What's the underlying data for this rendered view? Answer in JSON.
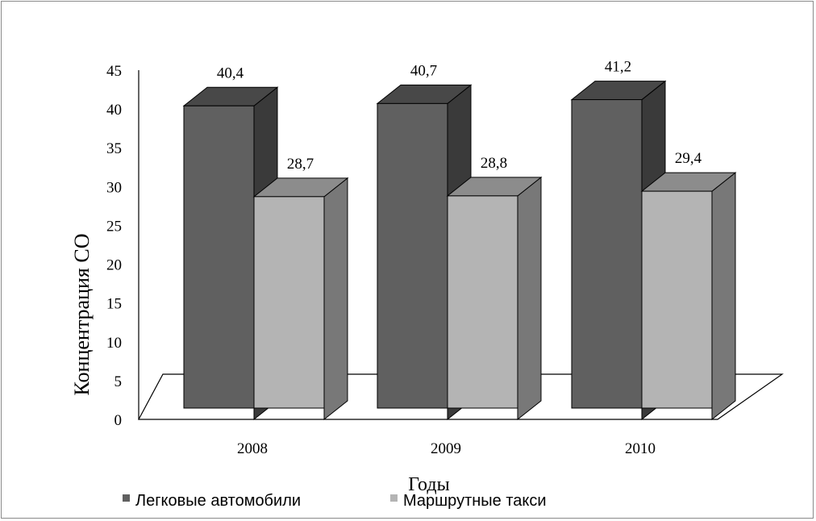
{
  "chart_data": {
    "type": "bar",
    "title": "",
    "xlabel": "Годы",
    "ylabel": "Концентрация СО",
    "categories": [
      "2008",
      "2009",
      "2010"
    ],
    "series": [
      {
        "name": "Легковые автомобили",
        "values": [
          40.4,
          40.7,
          41.2
        ],
        "value_labels": [
          "40,4",
          "40,7",
          "41,2"
        ],
        "color": "#606060"
      },
      {
        "name": "Маршрутные такси",
        "values": [
          28.7,
          28.8,
          29.4
        ],
        "value_labels": [
          "28,7",
          "28,8",
          "29,4"
        ],
        "color": "#b4b4b4"
      }
    ],
    "ylim": [
      0,
      45
    ],
    "yticks": [
      "0",
      "5",
      "10",
      "15",
      "20",
      "25",
      "30",
      "35",
      "40",
      "45"
    ],
    "grid": false,
    "three_d": true,
    "legend_position": "bottom"
  }
}
